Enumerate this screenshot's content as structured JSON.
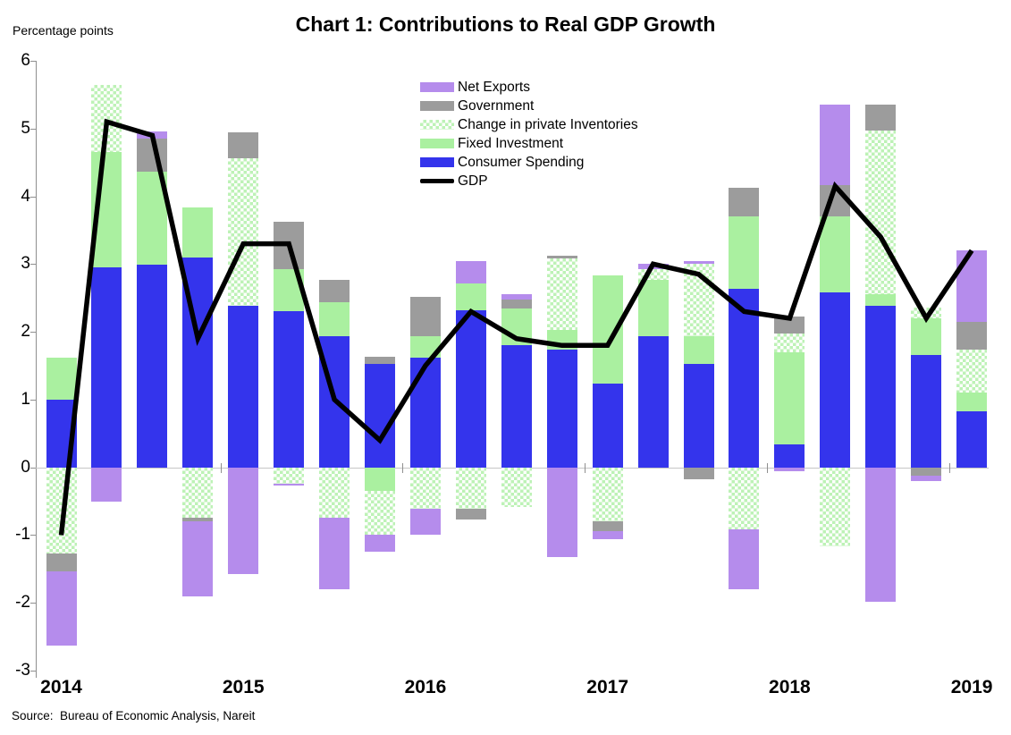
{
  "title": "Chart 1: Contributions to Real GDP Growth",
  "y_axis_title": "Percentage points",
  "source_note": "Source:  Bureau of Economic Analysis, Nareit",
  "colors": {
    "consumer": "#3434EC",
    "fixed": "#AAF0A0",
    "inventories": "#BDF2B6",
    "government": "#9C9C9C",
    "netExports": "#B58CEC",
    "gdp": "#000000",
    "zero_line": "#C6C6C6",
    "axis": "#8F8F8F"
  },
  "legend": {
    "items": [
      {
        "key": "netExports",
        "label": "Net Exports"
      },
      {
        "key": "government",
        "label": "Government"
      },
      {
        "key": "inventories",
        "label": "Change in private Inventories"
      },
      {
        "key": "fixed",
        "label": "Fixed Investment"
      },
      {
        "key": "consumer",
        "label": "Consumer Spending"
      },
      {
        "key": "gdp",
        "label": "GDP"
      }
    ]
  },
  "chart_data": {
    "type": "bar",
    "subtype": "stacked-bars-with-line",
    "title": "Chart 1: Contributions to Real GDP Growth",
    "xlabel": "",
    "ylabel": "Percentage points",
    "ylim": [
      -3,
      6
    ],
    "y_ticks": [
      6,
      5,
      4,
      3,
      2,
      1,
      0,
      -1,
      -2,
      -3
    ],
    "grid": false,
    "legend_position": "upper-center",
    "x_tick_labels": [
      "2014",
      "2015",
      "2016",
      "2017",
      "2018",
      "2019"
    ],
    "categories": [
      "2014 Q1",
      "2014 Q2",
      "2014 Q3",
      "2014 Q4",
      "2015 Q1",
      "2015 Q2",
      "2015 Q3",
      "2015 Q4",
      "2016 Q1",
      "2016 Q2",
      "2016 Q3",
      "2016 Q4",
      "2017 Q1",
      "2017 Q2",
      "2017 Q3",
      "2017 Q4",
      "2018 Q1",
      "2018 Q2",
      "2018 Q3",
      "2018 Q4",
      "2019 Q1"
    ],
    "stack_order": [
      "consumer",
      "fixed",
      "inventories",
      "government",
      "netExports"
    ],
    "series": [
      {
        "key": "consumer",
        "name": "Consumer Spending",
        "values": [
          1.0,
          2.95,
          2.99,
          3.1,
          2.38,
          2.31,
          1.93,
          1.52,
          1.62,
          2.32,
          1.8,
          1.74,
          1.23,
          1.94,
          1.52,
          2.64,
          0.34,
          2.58,
          2.38,
          1.66,
          0.83
        ]
      },
      {
        "key": "fixed",
        "name": "Fixed Investment",
        "values": [
          0.62,
          1.7,
          1.37,
          0.73,
          0.0,
          0.62,
          0.51,
          -0.35,
          0.32,
          0.4,
          0.55,
          0.29,
          1.6,
          0.83,
          0.42,
          1.07,
          1.36,
          1.13,
          0.18,
          0.54,
          0.27
        ]
      },
      {
        "key": "inventories",
        "name": "Change in private Inventories",
        "values": [
          -1.27,
          0.99,
          0.0,
          -0.74,
          2.18,
          -0.24,
          -0.74,
          -0.65,
          -0.61,
          -0.61,
          -0.58,
          1.06,
          -0.79,
          0.15,
          1.06,
          -0.92,
          0.28,
          -1.17,
          2.41,
          0.16,
          0.64
        ]
      },
      {
        "key": "government",
        "name": "Government",
        "values": [
          -0.27,
          0.0,
          0.49,
          -0.05,
          0.38,
          0.7,
          0.33,
          0.11,
          0.58,
          -0.16,
          0.13,
          0.03,
          -0.15,
          0.0,
          -0.17,
          0.41,
          0.25,
          0.45,
          0.38,
          -0.12,
          0.41
        ]
      },
      {
        "key": "netExports",
        "name": "Net Exports",
        "values": [
          -1.09,
          -0.51,
          0.11,
          -1.11,
          -1.58,
          -0.03,
          -1.06,
          -0.24,
          -0.38,
          0.33,
          0.07,
          -1.33,
          -0.12,
          0.08,
          0.05,
          -0.88,
          -0.06,
          1.19,
          -1.98,
          -0.08,
          1.05
        ]
      }
    ],
    "line_series": {
      "key": "gdp",
      "name": "GDP",
      "values": [
        -1.0,
        5.1,
        4.9,
        1.9,
        3.3,
        3.3,
        1.0,
        0.4,
        1.5,
        2.3,
        1.9,
        1.8,
        1.8,
        3.0,
        2.85,
        2.3,
        2.2,
        4.15,
        3.4,
        2.2,
        3.2
      ]
    }
  }
}
